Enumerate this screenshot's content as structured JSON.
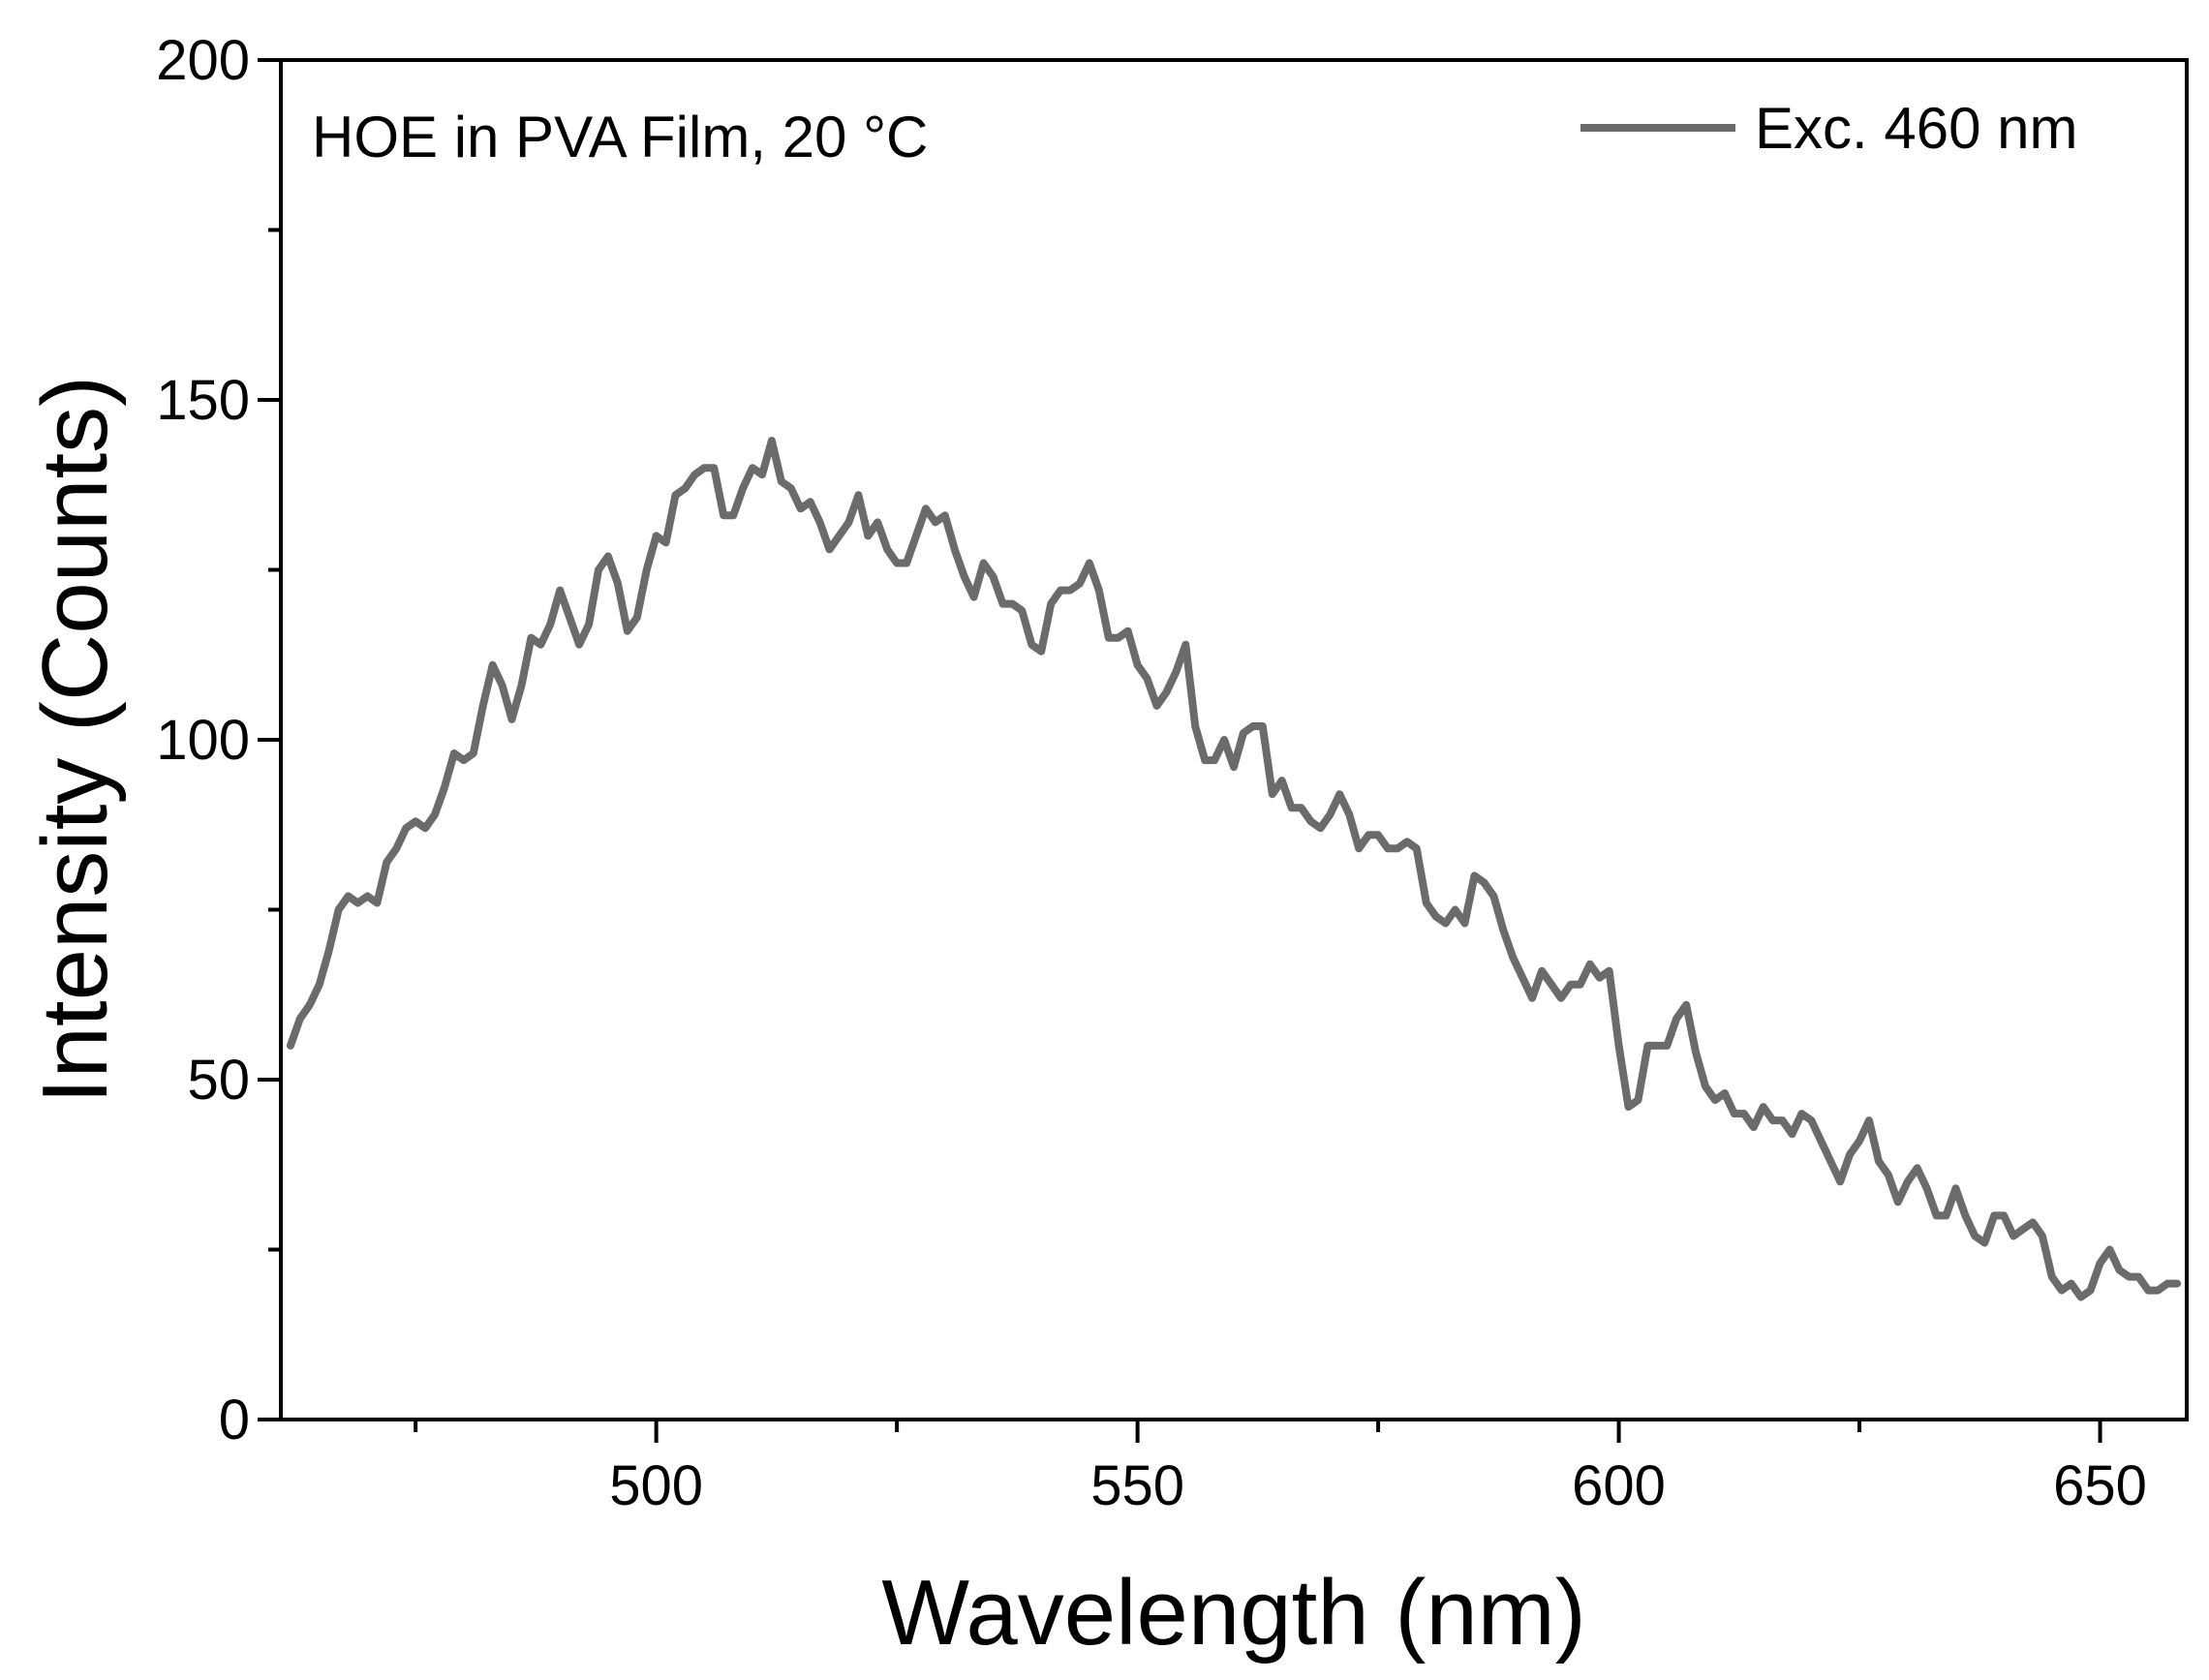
{
  "chart_data": {
    "type": "line",
    "title": "",
    "annotation": "HOE in PVA Film, 20 °C",
    "xlabel": "Wavelength (nm)",
    "ylabel": "Intensity (Counts)",
    "xlim": [
      461,
      659
    ],
    "ylim": [
      0,
      200
    ],
    "x_major_ticks": [
      500,
      550,
      600,
      650
    ],
    "x_minor_ticks": [
      475,
      525,
      575,
      625
    ],
    "y_major_ticks": [
      0,
      50,
      100,
      150,
      200
    ],
    "y_minor_ticks": [
      25,
      75,
      125,
      175
    ],
    "x_tick_labels": [
      "500",
      "550",
      "600",
      "650"
    ],
    "y_tick_labels": [
      "0",
      "50",
      "100",
      "150",
      "200"
    ],
    "grid": false,
    "legend_position": "top-right",
    "series": [
      {
        "name": "Exc. 460 nm",
        "color": "#6b6b6b",
        "x": [
          462,
          463,
          464,
          465,
          466,
          467,
          468,
          469,
          470,
          471,
          472,
          473,
          474,
          475,
          476,
          477,
          478,
          479,
          480,
          481,
          482,
          483,
          484,
          485,
          486,
          487,
          488,
          489,
          490,
          491,
          492,
          493,
          494,
          495,
          496,
          497,
          498,
          499,
          500,
          501,
          502,
          503,
          504,
          505,
          506,
          507,
          508,
          509,
          510,
          511,
          512,
          513,
          514,
          515,
          516,
          517,
          518,
          519,
          520,
          521,
          522,
          523,
          524,
          525,
          526,
          527,
          528,
          529,
          530,
          531,
          532,
          533,
          534,
          535,
          536,
          537,
          538,
          539,
          540,
          541,
          542,
          543,
          544,
          545,
          546,
          547,
          548,
          549,
          550,
          551,
          552,
          553,
          554,
          555,
          556,
          557,
          558,
          559,
          560,
          561,
          562,
          563,
          564,
          565,
          566,
          567,
          568,
          569,
          570,
          571,
          572,
          573,
          574,
          575,
          576,
          577,
          578,
          579,
          580,
          581,
          582,
          583,
          584,
          585,
          586,
          587,
          588,
          589,
          590,
          591,
          592,
          593,
          594,
          595,
          596,
          597,
          598,
          599,
          600,
          601,
          602,
          603,
          604,
          605,
          606,
          607,
          608,
          609,
          610,
          611,
          612,
          613,
          614,
          615,
          616,
          617,
          618,
          619,
          620,
          621,
          622,
          623,
          624,
          625,
          626,
          627,
          628,
          629,
          630,
          631,
          632,
          633,
          634,
          635,
          636,
          637,
          638,
          639,
          640,
          641,
          642,
          643,
          644,
          645,
          646,
          647,
          648,
          649,
          650,
          651,
          652,
          653,
          654,
          655,
          656,
          657,
          658
        ],
        "values": [
          55,
          59,
          61,
          64,
          69,
          75,
          77,
          76,
          77,
          76,
          82,
          84,
          87,
          88,
          87,
          89,
          93,
          98,
          97,
          98,
          105,
          111,
          108,
          103,
          108,
          115,
          114,
          117,
          122,
          118,
          114,
          117,
          125,
          127,
          123,
          116,
          118,
          125,
          130,
          129,
          136,
          137,
          139,
          140,
          140,
          133,
          133,
          137,
          140,
          139,
          144,
          138,
          137,
          134,
          135,
          132,
          128,
          130,
          132,
          136,
          130,
          132,
          128,
          126,
          126,
          130,
          134,
          132,
          133,
          128,
          124,
          121,
          126,
          124,
          120,
          120,
          119,
          114,
          113,
          120,
          122,
          122,
          123,
          126,
          122,
          115,
          115,
          116,
          111,
          109,
          105,
          107,
          110,
          114,
          102,
          97,
          97,
          100,
          96,
          101,
          102,
          102,
          92,
          94,
          90,
          90,
          88,
          87,
          89,
          92,
          89,
          84,
          86,
          86,
          84,
          84,
          85,
          84,
          76,
          74,
          73,
          75,
          73,
          80,
          79,
          77,
          72,
          68,
          65,
          62,
          66,
          64,
          62,
          64,
          64,
          67,
          65,
          66,
          55,
          46,
          47,
          55,
          55,
          55,
          59,
          61,
          54,
          49,
          47,
          48,
          45,
          45,
          43,
          46,
          44,
          44,
          42,
          45,
          44,
          41,
          38,
          35,
          39,
          41,
          44,
          38,
          36,
          32,
          35,
          37,
          34,
          30,
          30,
          34,
          30,
          27,
          26,
          30,
          30,
          27,
          28,
          29,
          27,
          21,
          19,
          20,
          18,
          19,
          23,
          25,
          22,
          21,
          21,
          19,
          19,
          20,
          20
        ]
      }
    ]
  }
}
